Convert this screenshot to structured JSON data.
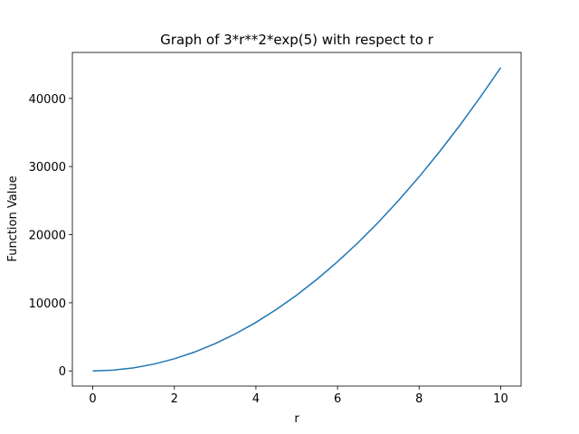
{
  "chart_data": {
    "type": "line",
    "title": "Graph of 3*r**2*exp(5) with respect to r",
    "xlabel": "r",
    "ylabel": "Function Value",
    "x": [
      0,
      0.5,
      1,
      1.5,
      2,
      2.5,
      3,
      3.5,
      4,
      4.5,
      5,
      5.5,
      6,
      6.5,
      7,
      7.5,
      8,
      8.5,
      9,
      9.5,
      10
    ],
    "series": [
      {
        "color": "#1f77b4",
        "values": [
          0,
          111,
          445,
          1002,
          1781,
          2783,
          4007,
          5454,
          7124,
          9016,
          11131,
          13469,
          16029,
          18811,
          21817,
          25045,
          28495,
          32169,
          36064,
          40183,
          44524
        ]
      }
    ],
    "xlim": [
      -0.5,
      10.5
    ],
    "ylim": [
      -2226,
      46750
    ],
    "xticks": [
      0,
      2,
      4,
      6,
      8,
      10
    ],
    "yticks": [
      0,
      10000,
      20000,
      30000,
      40000
    ],
    "grid": false
  }
}
